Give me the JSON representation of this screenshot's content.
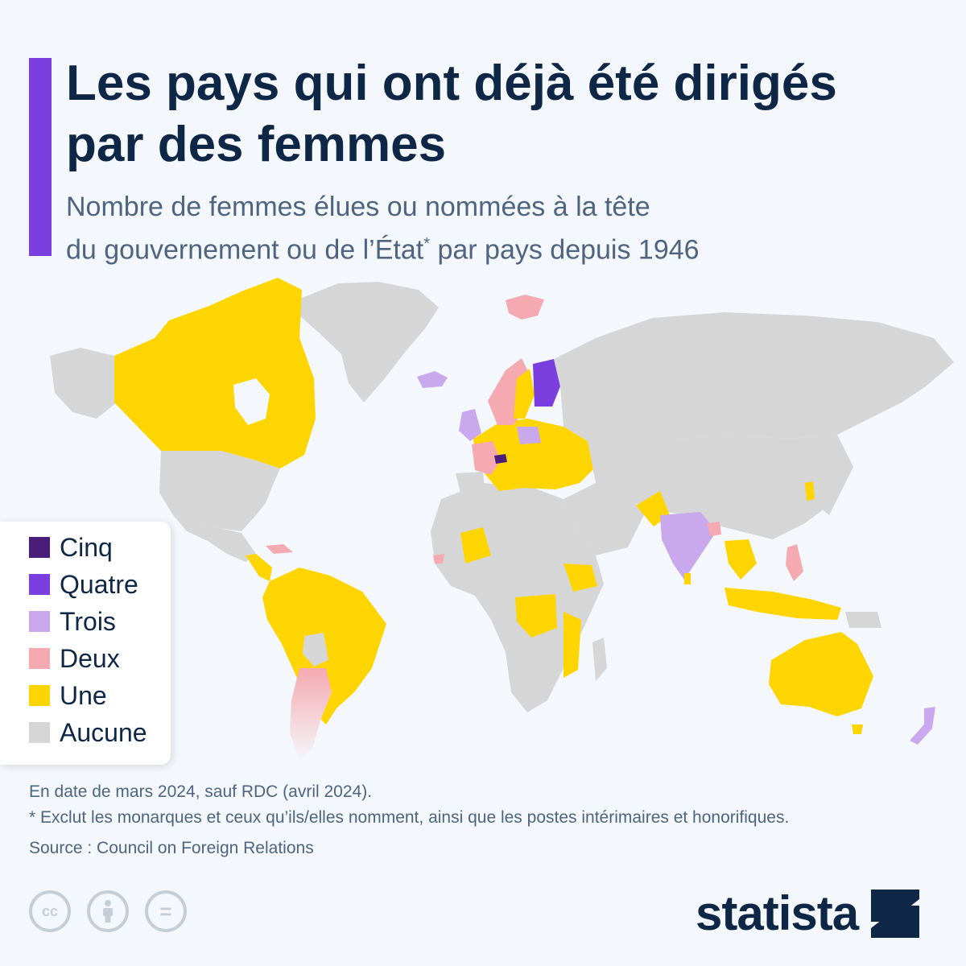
{
  "header": {
    "title": "Les pays qui ont déjà été dirigés par des femmes",
    "subtitle_line1": "Nombre de femmes élues ou nommées à la tête",
    "subtitle_line2_before": "du gouvernement ou de l’État",
    "subtitle_sup": "*",
    "subtitle_line2_after": " par pays depuis 1946"
  },
  "legend": {
    "items": [
      {
        "label": "Cinq",
        "color": "#4a1d7a"
      },
      {
        "label": "Quatre",
        "color": "#7b3fe0"
      },
      {
        "label": "Trois",
        "color": "#c9a8ee"
      },
      {
        "label": "Deux",
        "color": "#f5a9b0"
      },
      {
        "label": "Une",
        "color": "#ffd500"
      },
      {
        "label": "Aucune",
        "color": "#d6d6d6"
      }
    ]
  },
  "colors": {
    "accent": "#7b3fe0",
    "none": "#d6d6d6",
    "one": "#ffd500",
    "two": "#f5a9b0",
    "three": "#c9a8ee",
    "four": "#7b3fe0",
    "five": "#4a1d7a",
    "text_dark": "#0f2747",
    "text_muted": "#4e6480"
  },
  "notes": {
    "date_note": "En date de mars 2024, sauf RDC (avril 2024).",
    "asterisk_note": "* Exclut les monarques et ceux qu’ils/elles nomment, ainsi que les postes intérimaires et honorifiques.",
    "source": "Source : Council on Foreign Relations"
  },
  "footer": {
    "license_icons": [
      "creative-commons-icon",
      "attribution-icon",
      "no-derivatives-icon"
    ],
    "cc_label": "cc",
    "nd_label": "=",
    "brand": "statista"
  }
}
